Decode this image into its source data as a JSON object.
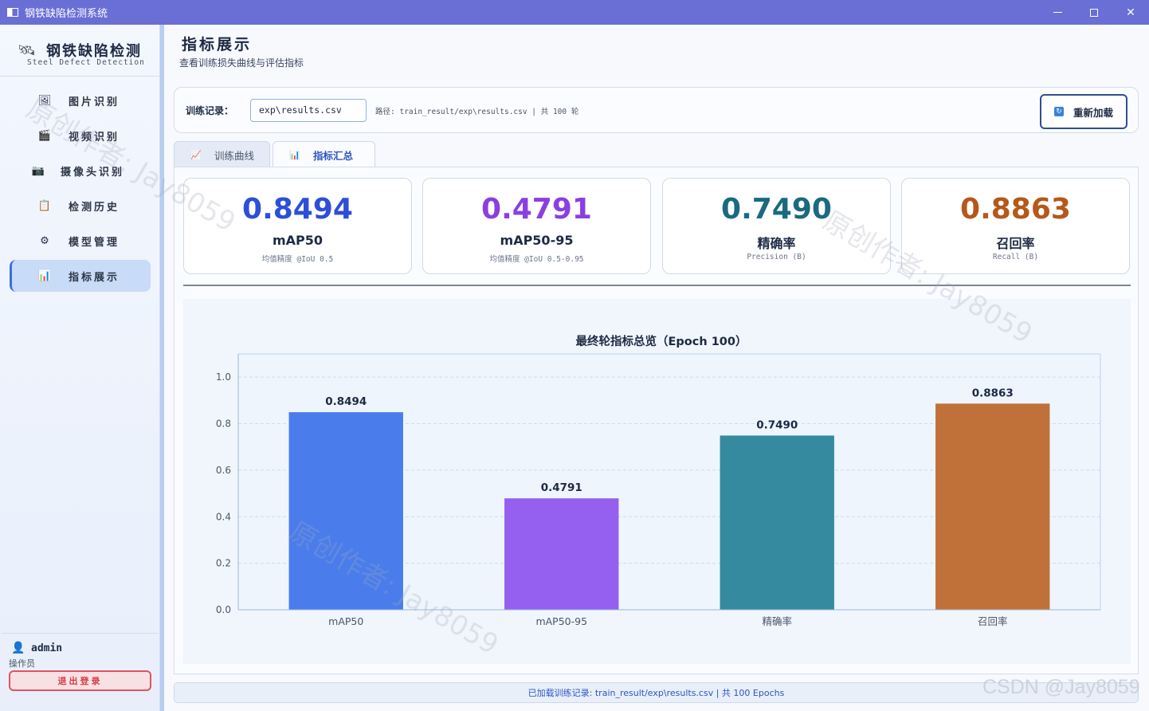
{
  "window": {
    "title": "钢铁缺陷检测系统"
  },
  "brand": {
    "title": "钢铁缺陷检测",
    "subtitle": "Steel Defect Detection"
  },
  "sidebar": {
    "items": [
      {
        "label": "图片识别",
        "icon": "image-icon"
      },
      {
        "label": "视频识别",
        "icon": "video-icon"
      },
      {
        "label": "摄像头识别",
        "icon": "camera-icon"
      },
      {
        "label": "检测历史",
        "icon": "history-icon"
      },
      {
        "label": "模型管理",
        "icon": "gear-icon"
      },
      {
        "label": "指标展示",
        "icon": "bar-chart-icon",
        "active": true
      }
    ]
  },
  "user": {
    "name": "admin",
    "role": "操作员",
    "logout_label": "退出登录"
  },
  "page": {
    "title": "指标展示",
    "subtitle": "查看训练损失曲线与评估指标"
  },
  "toolbar": {
    "record_label": "训练记录：",
    "record_value": "exp\\results.csv",
    "path_text": "路径: train_result/exp\\results.csv  |  共 100 轮",
    "reload_label": "重新加载"
  },
  "tabs": [
    {
      "label": "训练曲线",
      "icon": "line-chart-icon"
    },
    {
      "label": "指标汇总",
      "icon": "bar-chart-icon",
      "active": true
    }
  ],
  "cards": [
    {
      "value": "0.8494",
      "name": "mAP50",
      "desc": "均值精度 @IoU 0.5",
      "color": "#2d4fd8"
    },
    {
      "value": "0.4791",
      "name": "mAP50-95",
      "desc": "均值精度 @IoU 0.5-0.95",
      "color": "#8b3fe0"
    },
    {
      "value": "0.7490",
      "name": "精确率",
      "desc": "Precision (B)",
      "color": "#1a6a80"
    },
    {
      "value": "0.8863",
      "name": "召回率",
      "desc": "Recall (B)",
      "color": "#b5581a"
    }
  ],
  "chart_data": {
    "type": "bar",
    "title": "最终轮指标总览（Epoch 100）",
    "categories": [
      "mAP50",
      "mAP50-95",
      "精确率",
      "召回率"
    ],
    "values": [
      0.8494,
      0.4791,
      0.749,
      0.8863
    ],
    "value_labels": [
      "0.8494",
      "0.4791",
      "0.7490",
      "0.8863"
    ],
    "colors": [
      "#4a7deb",
      "#9560ef",
      "#358aa0",
      "#c0713a"
    ],
    "ylim": [
      0,
      1.1
    ],
    "yticks": [
      "0.0",
      "0.2",
      "0.4",
      "0.6",
      "0.8",
      "1.0"
    ],
    "grid": true,
    "xlabel": "",
    "ylabel": ""
  },
  "footer": {
    "text": "已加载训练记录: train_result/exp\\results.csv  |  共 100 Epochs"
  },
  "watermark": {
    "text": "原创作者: Jay8059",
    "site": "CSDN @Jay8059"
  }
}
